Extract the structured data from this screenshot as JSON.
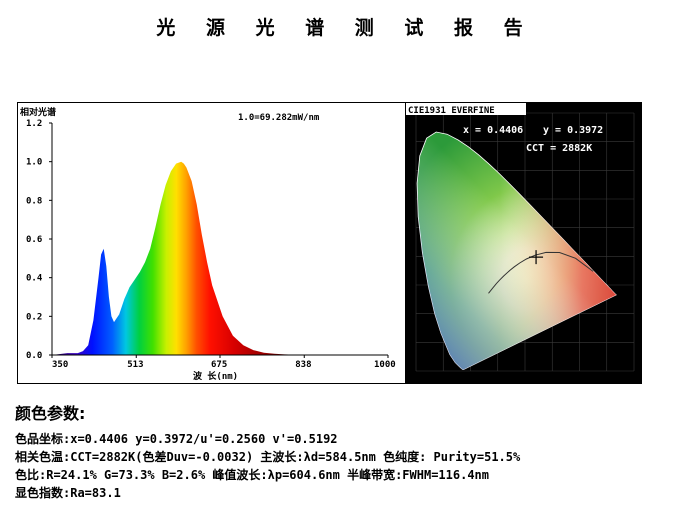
{
  "report": {
    "title": "光 源 光 谱 测 试 报 告"
  },
  "chart_data": [
    {
      "type": "area",
      "title": "相对光谱",
      "annotation": "1.0=69.282mW/nm",
      "xlabel": "波 长(nm)",
      "ylabel": "",
      "xlim": [
        350,
        1000
      ],
      "ylim": [
        0.0,
        1.2
      ],
      "x_ticks": [
        "350",
        "513",
        "675",
        "838",
        "1000"
      ],
      "y_ticks": [
        "0.0",
        "0.2",
        "0.4",
        "0.6",
        "0.8",
        "1.0",
        "1.2"
      ],
      "grid": false,
      "series": [
        {
          "x": [
            350,
            380,
            400,
            410,
            420,
            430,
            440,
            445,
            450,
            455,
            460,
            465,
            470,
            480,
            490,
            500,
            510,
            520,
            530,
            540,
            550,
            560,
            570,
            580,
            590,
            600,
            605,
            610,
            620,
            630,
            640,
            650,
            660,
            680,
            700,
            720,
            740,
            760,
            780,
            800,
            838,
            1000
          ],
          "values": [
            0.0,
            0.01,
            0.01,
            0.02,
            0.05,
            0.18,
            0.4,
            0.52,
            0.55,
            0.46,
            0.3,
            0.2,
            0.17,
            0.21,
            0.29,
            0.35,
            0.39,
            0.43,
            0.48,
            0.55,
            0.66,
            0.78,
            0.88,
            0.95,
            0.99,
            1.0,
            0.99,
            0.97,
            0.9,
            0.78,
            0.62,
            0.48,
            0.36,
            0.2,
            0.1,
            0.05,
            0.025,
            0.012,
            0.006,
            0.003,
            0.0,
            0.0
          ]
        }
      ]
    },
    {
      "type": "scatter",
      "title": "CIE1931 EVERFINE",
      "x_label_text": "x = 0.4406",
      "y_label_text": "y = 0.3972",
      "cct_text": "CCT = 2882K",
      "x": [
        0.4406
      ],
      "values": [
        0.3972
      ],
      "xlim": [
        0.0,
        0.8
      ],
      "ylim": [
        0.0,
        0.9
      ]
    }
  ],
  "params": {
    "heading": "颜色参数:",
    "lines": [
      "色品坐标:x=0.4406  y=0.3972/u'=0.2560 v'=0.5192",
      "相关色温:CCT=2882K(色差Duv=-0.0032) 主波长:λd=584.5nm 色纯度: Purity=51.5%",
      "色比:R=24.1% G=73.3% B=2.6%  峰值波长:λp=604.6nm  半峰带宽:FWHM=116.4nm",
      "显色指数:Ra=83.1"
    ]
  }
}
